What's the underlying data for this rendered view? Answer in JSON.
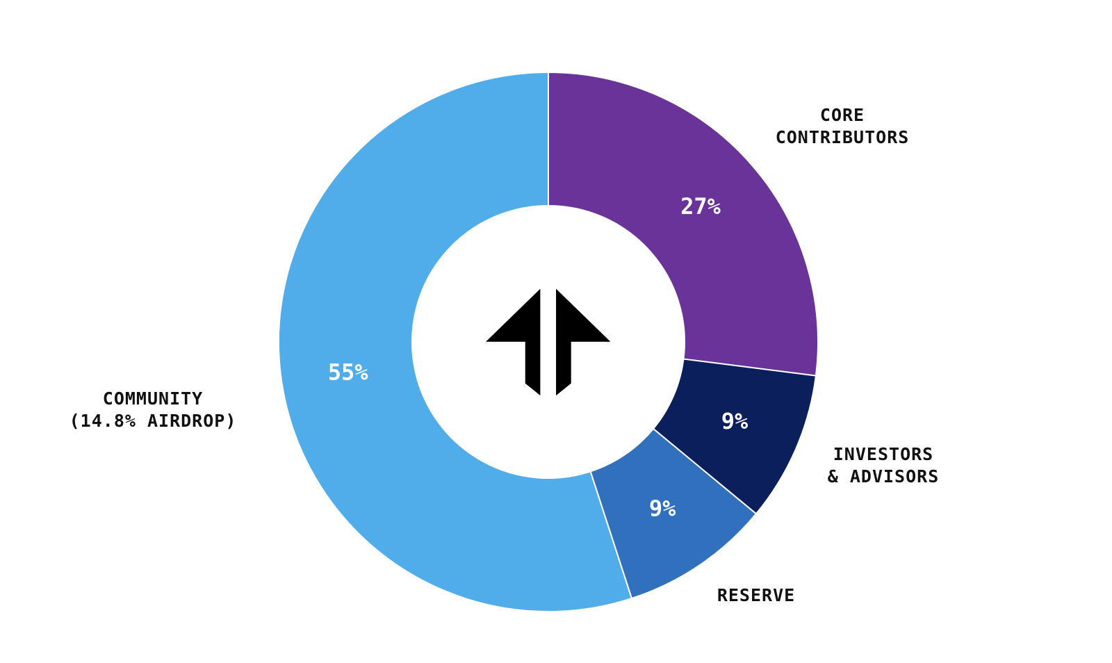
{
  "chart_data": {
    "type": "donut",
    "categories": [
      "CORE\nCONTRIBUTORS",
      "INVESTORS\n& ADVISORS",
      "RESERVE",
      "COMMUNITY\n(14.8% AIRDROP)"
    ],
    "values": [
      27,
      9,
      9,
      55
    ],
    "value_labels": [
      "27%",
      "9%",
      "9%",
      "55%"
    ],
    "colors": [
      "#6a3399",
      "#0b1f5c",
      "#3170bc",
      "#50adea"
    ]
  }
}
